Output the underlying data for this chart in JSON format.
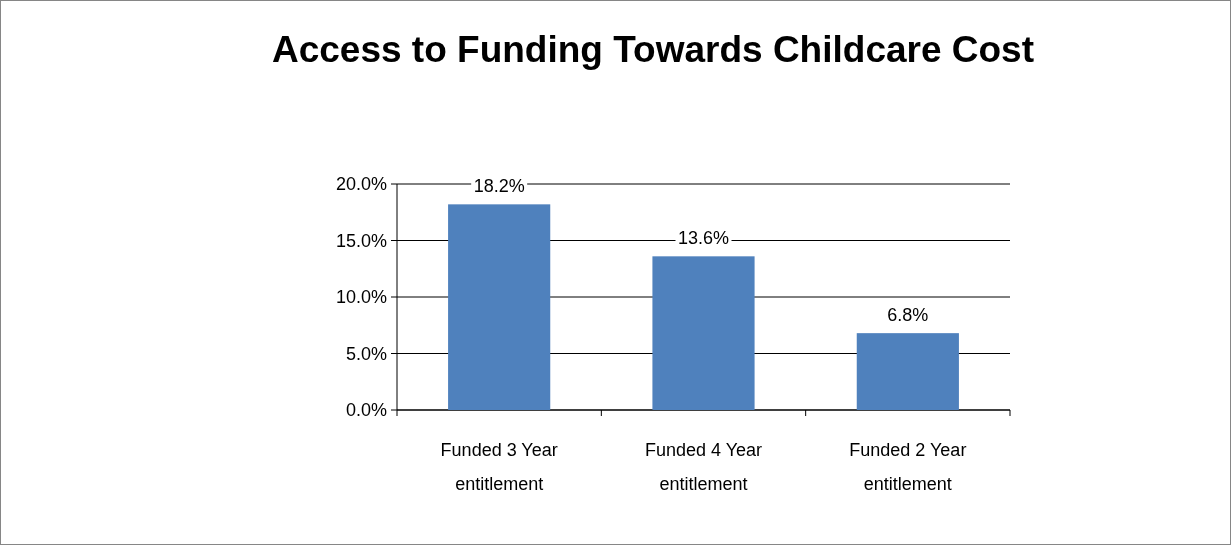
{
  "chart_data": {
    "type": "bar",
    "title": "Access to Funding Towards Childcare Cost",
    "categories": [
      "Funded 3 Year entitlement",
      "Funded 4 Year entitlement",
      "Funded 2 Year entitlement"
    ],
    "values": [
      18.2,
      13.6,
      6.8
    ],
    "color": "#4f81bd",
    "value_labels": [
      "18.2%",
      "13.6%",
      "6.8%"
    ],
    "ylim": [
      0,
      20
    ],
    "yticks": [
      {
        "value": 0,
        "label": "0.0%"
      },
      {
        "value": 5,
        "label": "5.0%"
      },
      {
        "value": 10,
        "label": "10.0%"
      },
      {
        "value": 15,
        "label": "15.0%"
      },
      {
        "value": 20,
        "label": "20.0%"
      }
    ],
    "grid": "y"
  }
}
